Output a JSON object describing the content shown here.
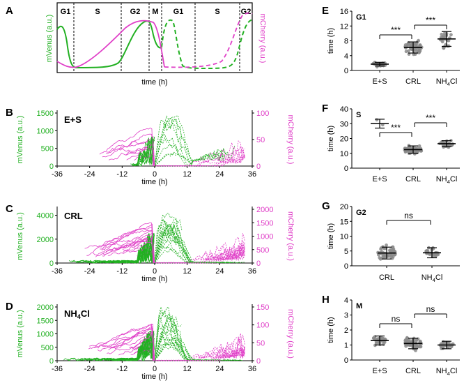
{
  "figure_title": "",
  "colors": {
    "green": "#22b022",
    "magenta": "#e040c8",
    "black": "#000000",
    "gray": "#8a8a8a"
  },
  "panel_A": {
    "letter": "A",
    "phases": [
      "G1",
      "S",
      "G2",
      "M",
      "G1",
      "S",
      "G2"
    ],
    "ylabel_left": "mVenus (a.u.)",
    "ylabel_right": "mCherry (a.u.)",
    "xlabel": "time (h)"
  },
  "chart_data": [
    {
      "panel": "B",
      "type": "line",
      "label": "E+S",
      "xlabel": "time (h)",
      "ylabel_left": "mVenus (a.u.)",
      "ylabel_right": "mCherry (a.u.)",
      "xlim": [
        -36,
        36
      ],
      "xticks": [
        -36,
        -24,
        -12,
        0,
        12,
        24,
        36
      ],
      "ylim_left": [
        0,
        1500
      ],
      "yticks_left": [
        0,
        500,
        1000,
        1500
      ],
      "ylim_right": [
        0,
        100
      ],
      "yticks_right": [
        0,
        50,
        100
      ],
      "series_desc": "single-cell traces: mVenus (green, solid before division / dashed after) and mCherry (magenta)"
    },
    {
      "panel": "C",
      "type": "line",
      "label": "CRL",
      "xlabel": "time (h)",
      "ylabel_left": "mVenus (a.u.)",
      "ylabel_right": "mCherry (a.u.)",
      "xlim": [
        -36,
        36
      ],
      "xticks": [
        -36,
        -24,
        -12,
        0,
        12,
        24,
        36
      ],
      "ylim_left": [
        0,
        4500
      ],
      "yticks_left": [
        0,
        2000,
        4000
      ],
      "ylim_right": [
        0,
        2000
      ],
      "yticks_right": [
        0,
        500,
        1000,
        1500,
        2000
      ]
    },
    {
      "panel": "D",
      "type": "line",
      "label": "NH4Cl",
      "xlabel": "time (h)",
      "ylabel_left": "mVenus (a.u.)",
      "ylabel_right": "mCherry (a.u.)",
      "xlim": [
        -36,
        36
      ],
      "xticks": [
        -36,
        -24,
        -12,
        0,
        12,
        24,
        36
      ],
      "ylim_left": [
        0,
        2000
      ],
      "yticks_left": [
        0,
        500,
        1000,
        1500,
        2000
      ],
      "ylim_right": [
        0,
        150
      ],
      "yticks_right": [
        0,
        50,
        100,
        150
      ]
    },
    {
      "panel": "E",
      "type": "scatter",
      "title": "G1",
      "ylabel": "time (h)",
      "ylim": [
        0,
        16
      ],
      "yticks": [
        0,
        4,
        8,
        12,
        16
      ],
      "categories": [
        "E+S",
        "CRL",
        "NH4Cl"
      ],
      "means": [
        1.7,
        6.2,
        8.5
      ],
      "sds": [
        0.5,
        1.5,
        2.0
      ],
      "significance": [
        {
          "between": [
            0,
            1
          ],
          "label": "***"
        },
        {
          "between": [
            1,
            2
          ],
          "label": "***"
        }
      ]
    },
    {
      "panel": "F",
      "type": "scatter",
      "title": "S",
      "ylabel": "time (h)",
      "ylim": [
        0,
        40
      ],
      "yticks": [
        0,
        10,
        20,
        30,
        40
      ],
      "categories": [
        "E+S",
        "CRL",
        "NH4Cl"
      ],
      "means": [
        30,
        12.5,
        16.5
      ],
      "sds": [
        3,
        2.5,
        2.0
      ],
      "significance": [
        {
          "between": [
            0,
            1
          ],
          "label": "***"
        },
        {
          "between": [
            1,
            2
          ],
          "label": "***"
        }
      ]
    },
    {
      "panel": "G",
      "type": "scatter",
      "title": "G2",
      "ylabel": "time (h)",
      "ylim": [
        0,
        20
      ],
      "yticks": [
        0,
        5,
        10,
        15,
        20
      ],
      "categories": [
        "CRL",
        "NH4Cl"
      ],
      "means": [
        4.3,
        4.4
      ],
      "sds": [
        2.0,
        1.7
      ],
      "significance": [
        {
          "between": [
            0,
            1
          ],
          "label": "ns"
        }
      ]
    },
    {
      "panel": "H",
      "type": "scatter",
      "title": "M",
      "ylabel": "time (h)",
      "ylim": [
        0,
        4
      ],
      "yticks": [
        0,
        1,
        2,
        3,
        4
      ],
      "categories": [
        "E+S",
        "CRL",
        "NH4Cl"
      ],
      "means": [
        1.3,
        1.1,
        1.0
      ],
      "sds": [
        0.3,
        0.35,
        0.25
      ],
      "significance": [
        {
          "between": [
            0,
            1
          ],
          "label": "ns"
        },
        {
          "between": [
            1,
            2
          ],
          "label": "ns"
        }
      ]
    }
  ]
}
